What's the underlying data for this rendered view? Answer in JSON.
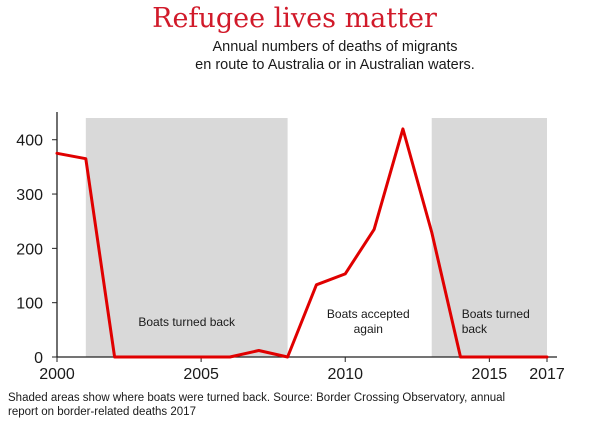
{
  "colors": {
    "title": "#d11a2a",
    "line": "#e00000",
    "shade": "#d9d9d9",
    "axis": "#222222",
    "text": "#1a1a1a"
  },
  "header": {
    "title": "Refugee lives matter",
    "subtitle_line1": "Annual numbers of deaths of migrants",
    "subtitle_line2": "en route to Australia or in Australian waters."
  },
  "footer": {
    "source_line1": "Shaded areas show where boats were turned back. Source: Border Crossing Observatory, annual",
    "source_line2": "report on border-related deaths 2017"
  },
  "chart_data": {
    "type": "line",
    "title": "Refugee lives matter",
    "subtitle": "Annual numbers of deaths of migrants en route to Australia or in Australian waters.",
    "x": [
      2000,
      2001,
      2002,
      2003,
      2004,
      2005,
      2006,
      2007,
      2008,
      2009,
      2010,
      2011,
      2012,
      2013,
      2014,
      2015,
      2016,
      2017
    ],
    "series": [
      {
        "values": [
          375,
          365,
          0,
          0,
          0,
          0,
          0,
          12,
          0,
          133,
          153,
          235,
          420,
          230,
          0,
          0,
          0,
          0
        ]
      }
    ],
    "xlim": [
      2000,
      2017
    ],
    "ylim": [
      0,
      440
    ],
    "xticks": [
      2000,
      2005,
      2010,
      2015,
      2017
    ],
    "yticks": [
      0,
      100,
      200,
      300,
      400
    ],
    "grid": false,
    "shaded_regions": [
      {
        "x_start": 2001,
        "x_end": 2008,
        "label_lines": [
          "Boats turned back"
        ]
      },
      {
        "x_start": 2013,
        "x_end": 2017,
        "label_lines": [
          "Boats turned",
          "back"
        ]
      }
    ],
    "annotations": [
      {
        "x": 2010.8,
        "label_lines": [
          "Boats accepted",
          "again"
        ]
      }
    ]
  }
}
